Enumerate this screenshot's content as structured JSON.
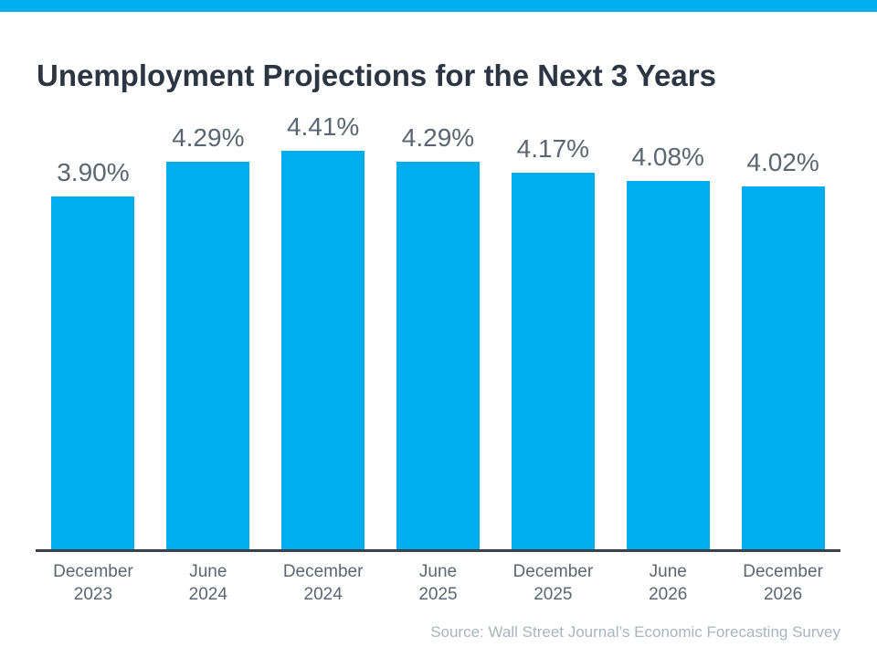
{
  "page": {
    "accent_color": "#00AEEF",
    "background_color": "#FFFFFF"
  },
  "header": {
    "title": "Unemployment Projections for the Next 3 Years"
  },
  "chart_data": {
    "type": "bar",
    "title": "Unemployment Projections for the Next 3 Years",
    "categories": [
      {
        "month": "December",
        "year": "2023"
      },
      {
        "month": "June",
        "year": "2024"
      },
      {
        "month": "December",
        "year": "2024"
      },
      {
        "month": "June",
        "year": "2025"
      },
      {
        "month": "December",
        "year": "2025"
      },
      {
        "month": "June",
        "year": "2026"
      },
      {
        "month": "December",
        "year": "2026"
      }
    ],
    "values": [
      3.9,
      4.29,
      4.41,
      4.29,
      4.17,
      4.08,
      4.02
    ],
    "value_labels": [
      "3.90%",
      "4.29%",
      "4.41%",
      "4.29%",
      "4.17%",
      "4.08%",
      "4.02%"
    ],
    "xlabel": "",
    "ylabel": "",
    "ylim": [
      0,
      4.41
    ],
    "grid": false,
    "legend": false,
    "bar_color": "#00AEEF",
    "value_label_color": "#5b6673",
    "tick_label_color": "#5b6673",
    "axis_color": "#39414b"
  },
  "footer": {
    "source": "Source: Wall Street Journal’s Economic Forecasting Survey"
  }
}
